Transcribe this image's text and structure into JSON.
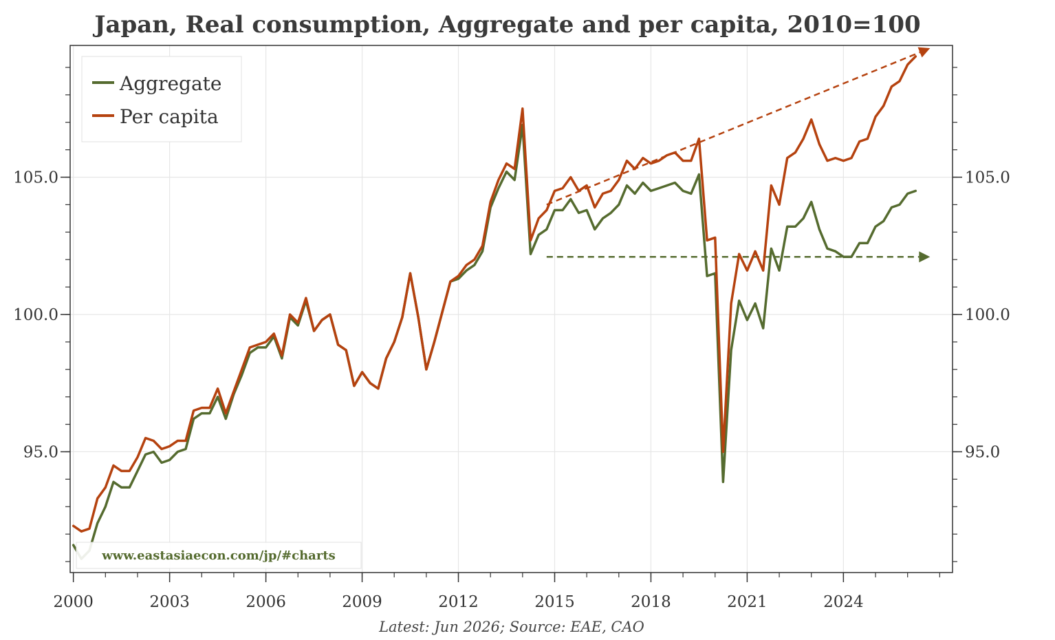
{
  "chart_data": {
    "type": "line",
    "title": "Japan, Real consumption, Aggregate and per capita, 2010=100",
    "xlabel": "",
    "ylabel": "",
    "x_ticks": [
      "2000",
      "2003",
      "2006",
      "2009",
      "2012",
      "2015",
      "2018",
      "2021",
      "2024"
    ],
    "y_ticks": [
      "95.0",
      "100.0",
      "105.0"
    ],
    "xlim": [
      1999.9,
      2027.4
    ],
    "ylim": [
      90.6,
      109.8
    ],
    "grid": true,
    "legend_position": "top-left",
    "x_start": 2000.0,
    "x_step": 0.25,
    "series": [
      {
        "name": "Aggregate",
        "color": "#556b2f",
        "values": [
          91.6,
          91.1,
          91.4,
          92.4,
          93.0,
          93.9,
          93.7,
          93.7,
          94.3,
          94.9,
          95.0,
          94.6,
          94.7,
          95.0,
          95.1,
          96.2,
          96.4,
          96.4,
          97.0,
          96.2,
          97.1,
          97.8,
          98.6,
          98.8,
          98.8,
          99.2,
          98.4,
          99.9,
          99.6,
          100.5,
          99.4,
          99.8,
          100.0,
          98.9,
          98.7,
          97.4,
          97.9,
          97.5,
          97.3,
          98.4,
          99.0,
          99.9,
          101.5,
          99.9,
          98.0,
          99.0,
          100.1,
          101.2,
          101.3,
          101.6,
          101.8,
          102.3,
          103.9,
          104.6,
          105.2,
          104.9,
          106.9,
          102.2,
          102.9,
          103.1,
          103.8,
          103.8,
          104.2,
          103.7,
          103.8,
          103.1,
          103.5,
          103.7,
          104.0,
          104.7,
          104.4,
          104.8,
          104.5,
          104.6,
          104.7,
          104.8,
          104.5,
          104.4,
          105.1,
          101.4,
          101.5,
          93.9,
          98.7,
          100.5,
          99.8,
          100.4,
          99.5,
          102.4,
          101.6,
          103.2,
          103.2,
          103.5,
          104.1,
          103.1,
          102.4,
          102.3,
          102.1,
          102.1,
          102.6,
          102.6,
          103.2,
          103.4,
          103.9,
          104.0,
          104.4,
          104.5
        ]
      },
      {
        "name": "Per capita",
        "color": "#b5420f",
        "values": [
          92.3,
          92.1,
          92.2,
          93.3,
          93.7,
          94.5,
          94.3,
          94.3,
          94.8,
          95.5,
          95.4,
          95.1,
          95.2,
          95.4,
          95.4,
          96.5,
          96.6,
          96.6,
          97.3,
          96.4,
          97.2,
          98.0,
          98.8,
          98.9,
          99.0,
          99.3,
          98.5,
          100.0,
          99.7,
          100.6,
          99.4,
          99.8,
          100.0,
          98.9,
          98.7,
          97.4,
          97.9,
          97.5,
          97.3,
          98.4,
          99.0,
          99.9,
          101.5,
          99.9,
          98.0,
          99.0,
          100.1,
          101.2,
          101.4,
          101.8,
          102.0,
          102.5,
          104.1,
          104.9,
          105.5,
          105.3,
          107.5,
          102.7,
          103.5,
          103.8,
          104.5,
          104.6,
          105.0,
          104.5,
          104.7,
          103.9,
          104.4,
          104.5,
          104.9,
          105.6,
          105.3,
          105.7,
          105.5,
          105.6,
          105.8,
          105.9,
          105.6,
          105.6,
          106.4,
          102.7,
          102.8,
          95.0,
          100.4,
          102.2,
          101.6,
          102.3,
          101.6,
          104.7,
          104.0,
          105.7,
          105.9,
          106.4,
          107.1,
          106.2,
          105.6,
          105.7,
          105.6,
          105.7,
          106.3,
          106.4,
          107.2,
          107.6,
          108.3,
          108.5,
          109.1,
          109.4
        ]
      }
    ],
    "trend_arrows": [
      {
        "series": "Per capita",
        "from": [
          2014.75,
          104.0
        ],
        "to": [
          2026.7,
          109.7
        ],
        "color": "#b5420f"
      },
      {
        "series": "Aggregate",
        "from": [
          2014.75,
          102.1
        ],
        "to": [
          2026.7,
          102.1
        ],
        "color": "#556b2f"
      }
    ]
  },
  "source_text": "Latest: Jun 2026; Source: EAE, CAO",
  "watermark_text": "www.eastasiaecon.com/jp/#charts",
  "colors": {
    "aggregate": "#556b2f",
    "per_capita": "#b5420f",
    "grid": "#e6e6e6",
    "axis": "#333333",
    "watermark": "#556b2f"
  }
}
